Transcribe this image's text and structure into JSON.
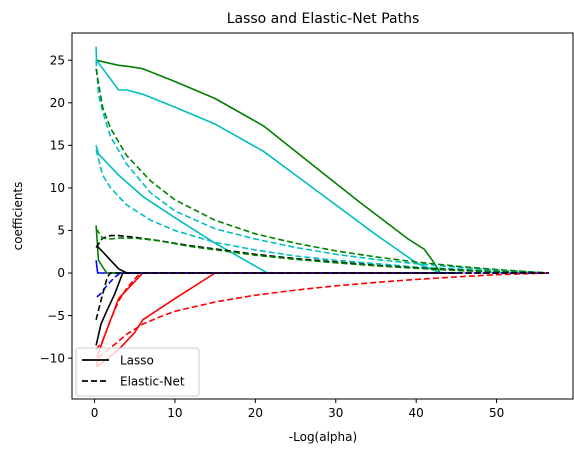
{
  "chart_data": {
    "type": "line",
    "title": "Lasso and Elastic-Net Paths",
    "xlabel": "-Log(alpha)",
    "ylabel": "coefficients",
    "xlim": [
      -2.8,
      59.5
    ],
    "ylim": [
      -14.8,
      28.2
    ],
    "xticks": [
      0,
      10,
      20,
      30,
      40,
      50
    ],
    "yticks": [
      -10,
      -5,
      0,
      5,
      10,
      15,
      20,
      25
    ],
    "grid": false,
    "legend": {
      "position": "lower-left",
      "entries": [
        {
          "label": "Lasso",
          "style": "solid",
          "color": "#000000"
        },
        {
          "label": "Elastic-Net",
          "style": "dashed",
          "color": "#000000"
        }
      ]
    },
    "series": [
      {
        "method": "Lasso",
        "color": "#0000ff",
        "dash": "solid",
        "x": [
          0.2,
          0.4,
          1,
          2,
          45
        ],
        "y": [
          1.5,
          0,
          0,
          0,
          0
        ]
      },
      {
        "method": "Lasso",
        "color": "#008000",
        "dash": "solid",
        "x": [
          0.2,
          0.5,
          1.5,
          2,
          45
        ],
        "y": [
          5.6,
          1.5,
          0,
          0,
          0
        ]
      },
      {
        "method": "Lasso",
        "color": "#ff0000",
        "dash": "solid",
        "x": [
          0.3,
          1,
          3,
          6,
          45
        ],
        "y": [
          -10,
          -8,
          -3,
          0,
          0
        ]
      },
      {
        "method": "Lasso",
        "color": "#00bfbf",
        "dash": "solid",
        "x": [
          0.2,
          0.5,
          3,
          6,
          10,
          15,
          21.5,
          45
        ],
        "y": [
          15,
          14,
          11.5,
          9,
          6.5,
          3.5,
          0,
          0
        ]
      },
      {
        "method": "Lasso",
        "color": "#000000",
        "dash": "solid",
        "x": [
          0.3,
          1,
          2,
          3,
          4,
          45
        ],
        "y": [
          3.2,
          2.5,
          1.5,
          0.5,
          0,
          0
        ]
      },
      {
        "method": "Lasso",
        "color": "#ff0000",
        "dash": "solid",
        "x": [
          0.3,
          1,
          3,
          5,
          6,
          10,
          15,
          45
        ],
        "y": [
          -11,
          -10.5,
          -9,
          -7,
          -5.5,
          -3,
          0,
          0
        ]
      },
      {
        "method": "Lasso",
        "color": "#008000",
        "dash": "solid",
        "x": [
          0.2,
          3,
          4,
          6,
          10,
          15,
          21,
          27,
          33,
          39,
          41,
          42,
          43,
          45
        ],
        "y": [
          25,
          24.4,
          24.3,
          24,
          22.5,
          20.5,
          17.3,
          12.8,
          8.3,
          4,
          2.8,
          1.5,
          0,
          0
        ]
      },
      {
        "method": "Lasso",
        "color": "#00bfbf",
        "dash": "solid",
        "x": [
          0.2,
          0.25,
          3,
          4,
          6,
          10,
          15,
          21,
          25,
          30,
          35,
          40,
          43,
          45
        ],
        "y": [
          26.6,
          25,
          21.5,
          21.5,
          21,
          19.5,
          17.5,
          14.3,
          11.5,
          8,
          4.5,
          1.2,
          0,
          0
        ]
      },
      {
        "method": "Lasso",
        "color": "#000000",
        "dash": "solid",
        "x": [
          0.2,
          0.8,
          1.5,
          2.5,
          3.5,
          45
        ],
        "y": [
          -8.5,
          -6,
          -4.5,
          -2.5,
          0,
          0
        ]
      },
      {
        "method": "Elastic-Net",
        "color": "#00bfbf",
        "dash": "dashed",
        "x": [
          0.2,
          0.5,
          1,
          2,
          4,
          7,
          10,
          15,
          20,
          25,
          30,
          35,
          40,
          45,
          50,
          56.5
        ],
        "y": [
          25,
          21,
          19,
          16,
          12.8,
          9.4,
          7.3,
          5.2,
          4,
          3,
          2.2,
          1.6,
          1.1,
          0.7,
          0.35,
          0
        ]
      },
      {
        "method": "Elastic-Net",
        "color": "#008000",
        "dash": "dashed",
        "x": [
          0.2,
          1,
          2,
          4,
          7,
          10,
          15,
          20,
          25,
          30,
          35,
          40,
          45,
          50,
          56.5
        ],
        "y": [
          24,
          19.5,
          17,
          13.8,
          10.8,
          8.6,
          6.2,
          4.6,
          3.5,
          2.6,
          1.9,
          1.3,
          0.8,
          0.4,
          0
        ]
      },
      {
        "method": "Elastic-Net",
        "color": "#00bfbf",
        "dash": "dashed",
        "x": [
          0.2,
          1,
          2,
          4,
          7,
          10,
          15,
          20,
          25,
          30,
          35,
          40,
          45,
          50,
          56.5
        ],
        "y": [
          14.5,
          11.5,
          10,
          8,
          6.2,
          5,
          3.6,
          2.7,
          2,
          1.5,
          1.1,
          0.7,
          0.45,
          0.2,
          0
        ]
      },
      {
        "method": "Elastic-Net",
        "color": "#000000",
        "dash": "dashed",
        "x": [
          0.2,
          1,
          2,
          3,
          5,
          8,
          12,
          16,
          20,
          25,
          30,
          35,
          40,
          45,
          50,
          56.5
        ],
        "y": [
          3,
          4.1,
          4.4,
          4.4,
          4.2,
          3.8,
          3.2,
          2.7,
          2.2,
          1.7,
          1.3,
          0.9,
          0.6,
          0.35,
          0.15,
          0
        ]
      },
      {
        "method": "Elastic-Net",
        "color": "#008000",
        "dash": "dashed",
        "x": [
          0.2,
          1,
          2,
          3,
          5,
          8,
          12,
          16,
          20,
          25,
          30,
          35,
          40,
          45,
          50,
          56.5
        ],
        "y": [
          5.2,
          4.1,
          4,
          4.1,
          4.1,
          3.8,
          3.1,
          2.6,
          2.1,
          1.6,
          1.2,
          0.85,
          0.55,
          0.3,
          0.12,
          0
        ]
      },
      {
        "method": "Elastic-Net",
        "color": "#ff0000",
        "dash": "dashed",
        "x": [
          0.2,
          0.5,
          1,
          2,
          3,
          4,
          6,
          8,
          10,
          15,
          20,
          25,
          30,
          35,
          40,
          45,
          50,
          56.5
        ],
        "y": [
          -11,
          -10,
          -9.5,
          -8.8,
          -8,
          -7.2,
          -6,
          -5.2,
          -4.5,
          -3.4,
          -2.6,
          -2,
          -1.5,
          -1.1,
          -0.75,
          -0.45,
          -0.2,
          0
        ]
      },
      {
        "method": "Elastic-Net",
        "color": "#ff0000",
        "dash": "dashed",
        "x": [
          0.2,
          1,
          2,
          3,
          4,
          5,
          5.7,
          56.5
        ],
        "y": [
          -9,
          -8,
          -5.5,
          -3.3,
          -1.8,
          -0.7,
          0,
          0
        ]
      },
      {
        "method": "Elastic-Net",
        "color": "#0000ff",
        "dash": "dashed",
        "x": [
          0.3,
          0.8,
          1.5,
          2.5,
          3.2,
          56.5
        ],
        "y": [
          -2.8,
          -2.4,
          -1.5,
          -0.5,
          0,
          0
        ]
      },
      {
        "method": "Elastic-Net",
        "color": "#000000",
        "dash": "dashed",
        "x": [
          0.2,
          0.6,
          1,
          1.5,
          1.8,
          2,
          56.5
        ],
        "y": [
          -5.5,
          -4,
          -2.5,
          -0.8,
          -0.2,
          0,
          0
        ]
      }
    ]
  }
}
